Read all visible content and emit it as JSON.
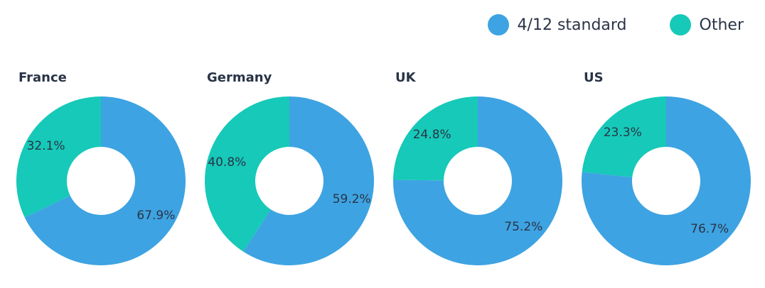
{
  "colors": {
    "standard": "#3ea3e2",
    "other": "#16c9b8",
    "text": "#2a3447"
  },
  "legend": [
    {
      "name": "4/12 standard",
      "color_key": "standard"
    },
    {
      "name": "Other",
      "color_key": "other"
    }
  ],
  "chart_data": [
    {
      "type": "pie",
      "title": "France",
      "series": [
        {
          "name": "4/12 standard",
          "value": 67.9,
          "label": "67.9%"
        },
        {
          "name": "Other",
          "value": 32.1,
          "label": "32.1%"
        }
      ]
    },
    {
      "type": "pie",
      "title": "Germany",
      "series": [
        {
          "name": "4/12 standard",
          "value": 59.2,
          "label": "59.2%"
        },
        {
          "name": "Other",
          "value": 40.8,
          "label": "40.8%"
        }
      ]
    },
    {
      "type": "pie",
      "title": "UK",
      "series": [
        {
          "name": "4/12 standard",
          "value": 75.2,
          "label": "75.2%"
        },
        {
          "name": "Other",
          "value": 24.8,
          "label": "24.8%"
        }
      ]
    },
    {
      "type": "pie",
      "title": "US",
      "series": [
        {
          "name": "4/12 standard",
          "value": 76.7,
          "label": "76.7%"
        },
        {
          "name": "Other",
          "value": 23.3,
          "label": "23.3%"
        }
      ]
    }
  ]
}
